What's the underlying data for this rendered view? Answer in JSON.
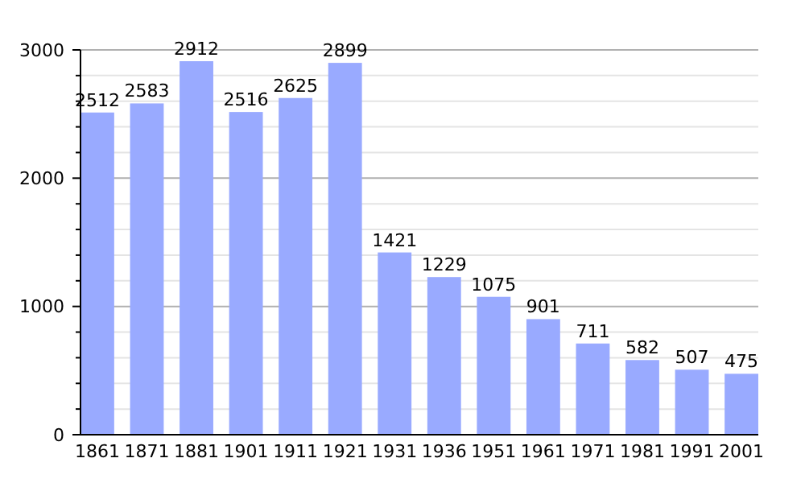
{
  "chart_data": {
    "type": "bar",
    "categories": [
      "1861",
      "1871",
      "1881",
      "1901",
      "1911",
      "1921",
      "1931",
      "1936",
      "1951",
      "1961",
      "1971",
      "1981",
      "1991",
      "2001"
    ],
    "values": [
      2512,
      2583,
      2912,
      2516,
      2625,
      2899,
      1421,
      1229,
      1075,
      901,
      711,
      582,
      507,
      475
    ],
    "color": "#99aaff",
    "data_labels": true,
    "grid": true,
    "ylim": [
      0,
      3000
    ],
    "yticks": [
      0,
      {
        "value": 200,
        "label": null
      },
      {
        "value": 400,
        "label": null
      },
      {
        "value": 600,
        "label": null
      },
      {
        "value": 800,
        "label": null
      },
      1000,
      {
        "value": 1200,
        "label": null
      },
      {
        "value": 1400,
        "label": null
      },
      {
        "value": 1600,
        "label": null
      },
      {
        "value": 1800,
        "label": null
      },
      2000,
      {
        "value": 2200,
        "label": null
      },
      {
        "value": 2400,
        "label": null
      },
      {
        "value": 2600,
        "label": null
      },
      {
        "value": 2800,
        "label": null
      },
      3000
    ]
  }
}
